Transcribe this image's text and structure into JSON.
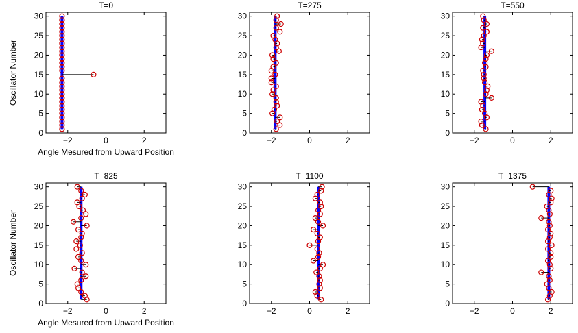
{
  "figure": {
    "line_color": "#0000ff",
    "connector_color": "#000000",
    "marker_color": "#cc0000"
  },
  "chart_data": [
    {
      "type": "scatter",
      "title": "T=0",
      "xlabel": "Angle Mesured from Upward Position",
      "ylabel": "Oscillator Number",
      "xlim": [
        -3.14,
        3.14
      ],
      "ylim": [
        0,
        31
      ],
      "xticks": [
        -2,
        0,
        2
      ],
      "yticks": [
        0,
        5,
        10,
        15,
        20,
        25,
        30
      ],
      "mean_angle": -2.3,
      "x": [
        -2.3,
        -2.3,
        -2.3,
        -2.3,
        -2.3,
        -2.3,
        -2.3,
        -2.3,
        -2.3,
        -2.3,
        -2.3,
        -2.3,
        -2.3,
        -2.3,
        -0.65,
        -2.3,
        -2.3,
        -2.3,
        -2.3,
        -2.3,
        -2.3,
        -2.3,
        -2.3,
        -2.3,
        -2.3,
        -2.3,
        -2.3,
        -2.3,
        -2.3,
        -2.3
      ],
      "y": [
        1,
        2,
        3,
        4,
        5,
        6,
        7,
        8,
        9,
        10,
        11,
        12,
        13,
        14,
        15,
        16,
        17,
        18,
        19,
        20,
        21,
        22,
        23,
        24,
        25,
        26,
        27,
        28,
        29,
        30
      ]
    },
    {
      "type": "scatter",
      "title": "T=275",
      "xlabel": "",
      "ylabel": "",
      "xlim": [
        -3.14,
        3.14
      ],
      "ylim": [
        0,
        31
      ],
      "xticks": [
        -2,
        0,
        2
      ],
      "yticks": [
        0,
        5,
        10,
        15,
        20,
        25,
        30
      ],
      "mean_angle": -1.8,
      "x": [
        -1.75,
        -1.55,
        -1.7,
        -1.55,
        -1.95,
        -1.85,
        -1.7,
        -1.75,
        -1.75,
        -1.95,
        -1.9,
        -1.75,
        -2.0,
        -2.0,
        -1.8,
        -2.0,
        -1.9,
        -1.75,
        -1.9,
        -1.95,
        -1.6,
        -1.75,
        -1.7,
        -1.8,
        -1.9,
        -1.55,
        -1.75,
        -1.5,
        -1.75,
        -1.7
      ],
      "y": [
        1,
        2,
        3,
        4,
        5,
        6,
        7,
        8,
        9,
        10,
        11,
        12,
        13,
        14,
        15,
        16,
        17,
        18,
        19,
        20,
        21,
        22,
        23,
        24,
        25,
        26,
        27,
        28,
        29,
        30
      ]
    },
    {
      "type": "scatter",
      "title": "T=550",
      "xlabel": "",
      "ylabel": "",
      "xlim": [
        -3.14,
        3.14
      ],
      "ylim": [
        0,
        31
      ],
      "xticks": [
        -2,
        0,
        2
      ],
      "yticks": [
        0,
        5,
        10,
        15,
        20,
        25,
        30
      ],
      "mean_angle": -1.45,
      "x": [
        -1.4,
        -1.6,
        -1.65,
        -1.35,
        -1.45,
        -1.6,
        -1.55,
        -1.65,
        -1.1,
        -1.4,
        -1.35,
        -1.3,
        -1.45,
        -1.5,
        -1.5,
        -1.55,
        -1.4,
        -1.45,
        -1.4,
        -1.35,
        -1.1,
        -1.65,
        -1.55,
        -1.6,
        -1.5,
        -1.35,
        -1.55,
        -1.35,
        -1.5,
        -1.55
      ],
      "y": [
        1,
        2,
        3,
        4,
        5,
        6,
        7,
        8,
        9,
        10,
        11,
        12,
        13,
        14,
        15,
        16,
        17,
        18,
        19,
        20,
        21,
        22,
        23,
        24,
        25,
        26,
        27,
        28,
        29,
        30
      ]
    },
    {
      "type": "scatter",
      "title": "T=825",
      "xlabel": "Angle Mesured from Upward Position",
      "ylabel": "Oscillator Number",
      "xlim": [
        -3.14,
        3.14
      ],
      "ylim": [
        0,
        31
      ],
      "xticks": [
        -2,
        0,
        2
      ],
      "yticks": [
        0,
        5,
        10,
        15,
        20,
        25,
        30
      ],
      "mean_angle": -1.3,
      "x": [
        -1.0,
        -1.1,
        -1.3,
        -1.45,
        -1.5,
        -1.3,
        -1.05,
        -1.25,
        -1.65,
        -1.05,
        -1.3,
        -1.45,
        -1.25,
        -1.55,
        -1.35,
        -1.55,
        -1.3,
        -1.25,
        -1.45,
        -1.0,
        -1.7,
        -1.3,
        -1.05,
        -1.2,
        -1.4,
        -1.5,
        -1.25,
        -1.1,
        -1.3,
        -1.5
      ],
      "y": [
        1,
        2,
        3,
        4,
        5,
        6,
        7,
        8,
        9,
        10,
        11,
        12,
        13,
        14,
        15,
        16,
        17,
        18,
        19,
        20,
        21,
        22,
        23,
        24,
        25,
        26,
        27,
        28,
        29,
        30
      ]
    },
    {
      "type": "scatter",
      "title": "T=1100",
      "xlabel": "",
      "ylabel": "",
      "xlim": [
        -3.14,
        3.14
      ],
      "ylim": [
        0,
        31
      ],
      "xticks": [
        -2,
        0,
        2
      ],
      "yticks": [
        0,
        5,
        10,
        15,
        20,
        25,
        30
      ],
      "mean_angle": 0.45,
      "x": [
        0.6,
        0.4,
        0.3,
        0.55,
        0.5,
        0.55,
        0.5,
        0.35,
        0.55,
        0.7,
        0.2,
        0.45,
        0.5,
        0.4,
        0.0,
        0.45,
        0.55,
        0.4,
        0.2,
        0.7,
        0.45,
        0.3,
        0.55,
        0.45,
        0.6,
        0.55,
        0.3,
        0.4,
        0.6,
        0.65
      ],
      "y": [
        1,
        2,
        3,
        4,
        5,
        6,
        7,
        8,
        9,
        10,
        11,
        12,
        13,
        14,
        15,
        16,
        17,
        18,
        19,
        20,
        21,
        22,
        23,
        24,
        25,
        26,
        27,
        28,
        29,
        30
      ]
    },
    {
      "type": "scatter",
      "title": "T=1375",
      "xlabel": "",
      "ylabel": "",
      "xlim": [
        -3.14,
        3.14
      ],
      "ylim": [
        0,
        31
      ],
      "xticks": [
        -2,
        0,
        2
      ],
      "yticks": [
        0,
        5,
        10,
        15,
        20,
        25,
        30
      ],
      "mean_angle": 1.9,
      "x": [
        1.85,
        1.95,
        2.05,
        1.9,
        1.8,
        1.95,
        1.9,
        1.5,
        2.0,
        1.95,
        1.85,
        2.0,
        2.0,
        1.85,
        2.05,
        1.85,
        1.95,
        2.0,
        1.85,
        1.95,
        1.9,
        1.5,
        1.95,
        1.9,
        1.8,
        2.0,
        2.05,
        1.9,
        2.0,
        1.05
      ],
      "y": [
        1,
        2,
        3,
        4,
        5,
        6,
        7,
        8,
        9,
        10,
        11,
        12,
        13,
        14,
        15,
        16,
        17,
        18,
        19,
        20,
        21,
        22,
        23,
        24,
        25,
        26,
        27,
        28,
        29,
        30
      ]
    }
  ]
}
